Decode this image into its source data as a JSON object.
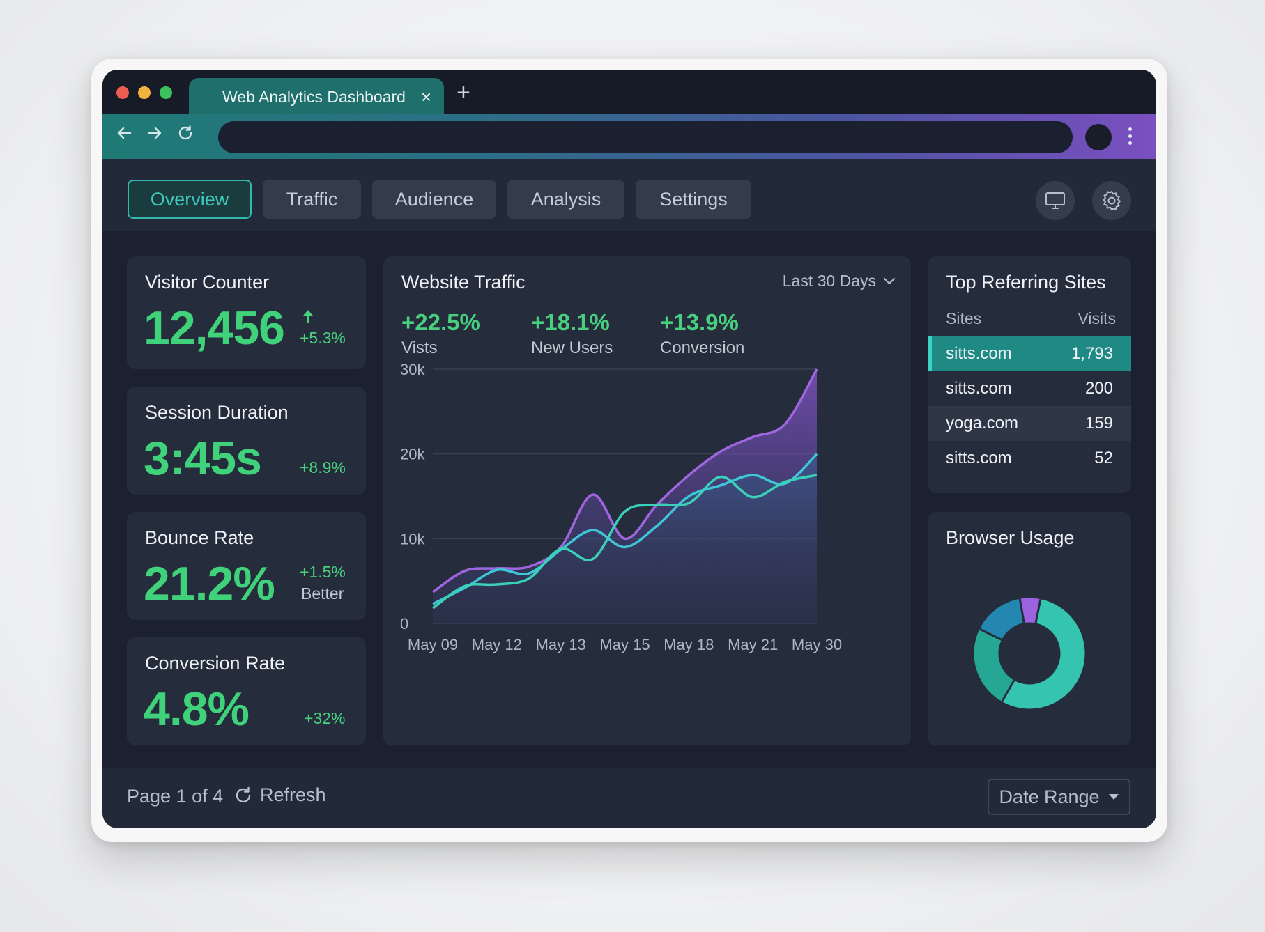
{
  "browser": {
    "tab_title": "Web Analytics Dashboard",
    "tab_close": "×",
    "new_tab": "+"
  },
  "nav": {
    "tabs": [
      {
        "label": "Overview",
        "active": true
      },
      {
        "label": "Traffic",
        "active": false
      },
      {
        "label": "Audience",
        "active": false
      },
      {
        "label": "Analysis",
        "active": false
      },
      {
        "label": "Settings",
        "active": false
      }
    ],
    "icons": [
      "monitor-icon",
      "gear-icon"
    ]
  },
  "kpis": {
    "visitor_counter": {
      "title": "Visitor Counter",
      "value": "12,456",
      "change": "+5.3%"
    },
    "session_duration": {
      "title": "Session Duration",
      "value": "3:45s",
      "change": "+8.9%"
    },
    "bounce_rate": {
      "title": "Bounce Rate",
      "value": "21.2%",
      "change": "+1.5%",
      "note": "Better"
    },
    "conversion_rate": {
      "title": "Conversion Rate",
      "value": "4.8%",
      "change": "+32%"
    }
  },
  "traffic": {
    "title": "Website Traffic",
    "range": "Last 30 Days",
    "stats": [
      {
        "value": "+22.5%",
        "label": "Vists"
      },
      {
        "value": "+18.1%",
        "label": "New Users"
      },
      {
        "value": "+13.9%",
        "label": "Conversion"
      }
    ]
  },
  "chart_data": {
    "type": "area",
    "title": "Website Traffic",
    "x": [
      "May 09",
      "May 12",
      "May 13",
      "May 15",
      "May 18",
      "May 21",
      "May 30"
    ],
    "y_ticks": [
      "0",
      "10k",
      "20k",
      "30k"
    ],
    "ylim": [
      0,
      30000
    ],
    "grid": true,
    "series": [
      {
        "color": "#a066e0",
        "x": [
          0,
          0.5,
          1,
          1.5,
          2,
          2.5,
          3,
          3.5,
          4,
          4.5,
          5,
          5.5,
          6
        ],
        "values": [
          3700,
          6200,
          6500,
          6700,
          9000,
          15200,
          10000,
          14000,
          17500,
          20300,
          22000,
          23500,
          30000
        ]
      },
      {
        "color": "#3ec7d8",
        "x": [
          0,
          0.5,
          1,
          1.5,
          2,
          2.5,
          3,
          3.5,
          4,
          4.5,
          5,
          5.5,
          6
        ],
        "values": [
          2300,
          4200,
          6300,
          5900,
          8700,
          11000,
          9000,
          11500,
          15000,
          16300,
          17500,
          16500,
          20000
        ]
      },
      {
        "color": "#3bd0b8",
        "x": [
          0,
          0.5,
          1,
          1.5,
          2,
          2.5,
          3,
          3.5,
          4,
          4.5,
          5,
          5.5,
          6
        ],
        "values": [
          1800,
          4400,
          4600,
          5300,
          8800,
          7600,
          13200,
          14000,
          14200,
          17300,
          14900,
          16700,
          17500
        ]
      }
    ]
  },
  "referrers": {
    "title": "Top Referring Sites",
    "col_site": "Sites",
    "col_visits": "Visits",
    "rows": [
      {
        "site": "sitts.com",
        "visits": "1,793"
      },
      {
        "site": "sitts.com",
        "visits": "200"
      },
      {
        "site": "yoga.com",
        "visits": "159"
      },
      {
        "site": "sitts.com",
        "visits": "52"
      }
    ]
  },
  "browser_usage": {
    "title": "Browser Usage",
    "segments": [
      {
        "value": 6,
        "color": "#9c63e0"
      },
      {
        "value": 55,
        "color": "#35c4b0"
      },
      {
        "value": 24,
        "color": "#26a796"
      },
      {
        "value": 15,
        "color": "#2387b0"
      }
    ]
  },
  "footer": {
    "page_info": "Page 1 of 4",
    "refresh": "Refresh",
    "date_range": "Date Range"
  },
  "colors": {
    "accent_green": "#40d27a",
    "accent_teal": "#32b8ad",
    "accent_purple": "#7b4fc0",
    "panel": "#252c3b",
    "background": "#1b2130"
  }
}
